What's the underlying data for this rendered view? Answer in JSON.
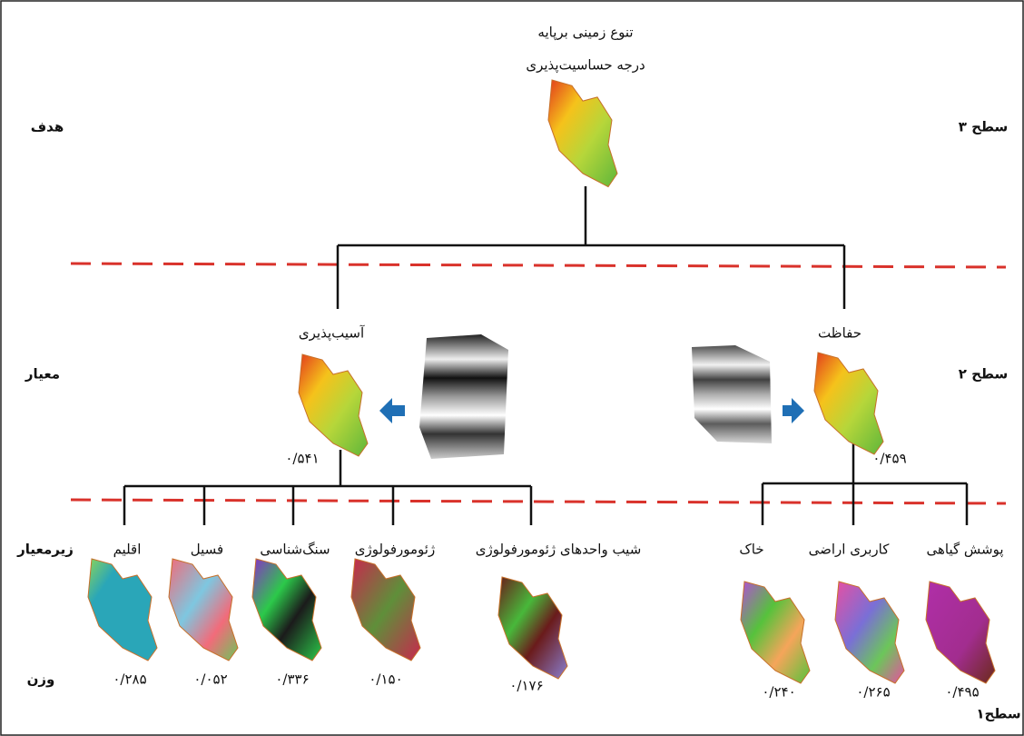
{
  "goal": {
    "lines": [
      "تنوع زمینی برپایه",
      "درجه حساسیت‌پذیری"
    ]
  },
  "levels": {
    "goal": "هدف",
    "criteria": "معیار",
    "subcriteria": "زیرمعیار",
    "weight": "وزن",
    "level3": "سطح ۳",
    "level2": "سطح ۲",
    "level1": "سطح۱"
  },
  "criteria": [
    {
      "label": "آسیب‌پذیری",
      "weight": "۰/۵۴۱",
      "subcriteria": [
        {
          "label": "اقلیم",
          "weight": "۰/۲۸۵"
        },
        {
          "label": "فسیل",
          "weight": "۰/۰۵۲"
        },
        {
          "label": "سنگ‌شناسی",
          "weight": "۰/۳۳۶"
        },
        {
          "label": "ژئومورفولوژی",
          "weight": "۰/۱۵۰"
        },
        {
          "label": "شیب واحدهای ژئومورفولوژی",
          "weight": "۰/۱۷۶"
        }
      ]
    },
    {
      "label": "حفاظت",
      "weight": "۰/۴۵۹",
      "subcriteria": [
        {
          "label": "خاک",
          "weight": "۰/۲۴۰"
        },
        {
          "label": "کاربری اراضی",
          "weight": "۰/۲۶۵"
        },
        {
          "label": "پوشش گیاهی",
          "weight": "۰/۴۹۵"
        }
      ]
    }
  ]
}
